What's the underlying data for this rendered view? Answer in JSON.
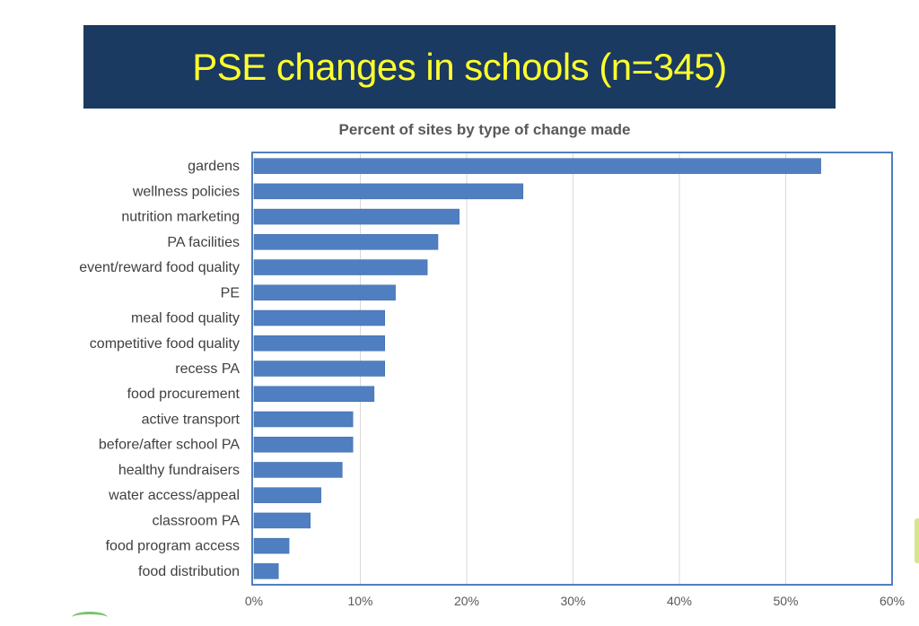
{
  "slide": {
    "title": "PSE changes in schools (n=345)"
  },
  "colors": {
    "banner": "#1a3a61",
    "title_text": "#ffff2e",
    "bar": "#4f7fc1",
    "frame": "#4f7fc1",
    "grid": "#d9d9d9"
  },
  "chart_data": {
    "type": "bar",
    "orientation": "horizontal",
    "title": "Percent of sites by type of change made",
    "xlabel": "",
    "ylabel": "",
    "categories": [
      "gardens",
      "wellness policies",
      "nutrition marketing",
      "PA facilities",
      "event/reward food quality",
      "PE",
      "meal food quality",
      "competitive food quality",
      "recess PA",
      "food procurement",
      "active transport",
      "before/after school PA",
      "healthy fundraisers",
      "water access/appeal",
      "classroom PA",
      "food program access",
      "food distribution"
    ],
    "values": [
      53.3,
      25.3,
      19.3,
      17.3,
      16.3,
      13.3,
      12.3,
      12.3,
      12.3,
      11.3,
      9.3,
      9.3,
      8.3,
      6.3,
      5.3,
      3.3,
      2.3
    ],
    "unit": "%",
    "xlim": [
      0,
      60
    ],
    "xticks": [
      "0%",
      "10%",
      "20%",
      "30%",
      "40%",
      "50%",
      "60%"
    ],
    "tick_values": [
      0,
      10,
      20,
      30,
      40,
      50,
      60
    ],
    "grid": true,
    "legend": "none"
  }
}
